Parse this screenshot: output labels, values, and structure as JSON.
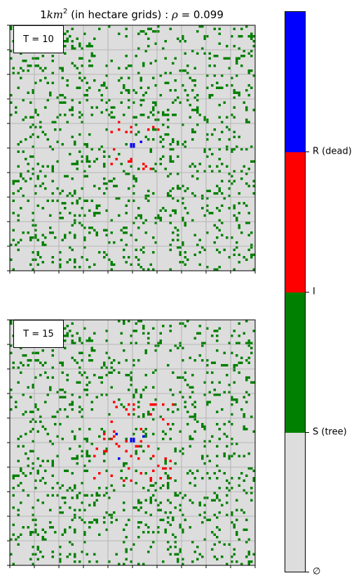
{
  "title": {
    "prefix": "1",
    "unit": "km",
    "exponent": "2",
    "middle": " (in hectare grids) : ",
    "symbol": "ρ",
    "value_text": " = 0.099"
  },
  "panels": [
    {
      "time_label": "T = 10",
      "step": 10
    },
    {
      "time_label": "T = 15",
      "step": 15
    }
  ],
  "grid": {
    "cells": 100,
    "density": 0.099,
    "gridlines_every": 10
  },
  "colors": {
    "empty": "#dddddd",
    "susceptible": "#008000",
    "infected": "#ff0000",
    "recovered": "#0000ff",
    "gridline": "#aaaaaa"
  },
  "colorbar": {
    "labels": [
      "∅",
      "S (tree)",
      "I",
      "R (dead)"
    ],
    "segments": [
      "#dddddd",
      "#008000",
      "#ff0000",
      "#0000ff"
    ]
  }
}
